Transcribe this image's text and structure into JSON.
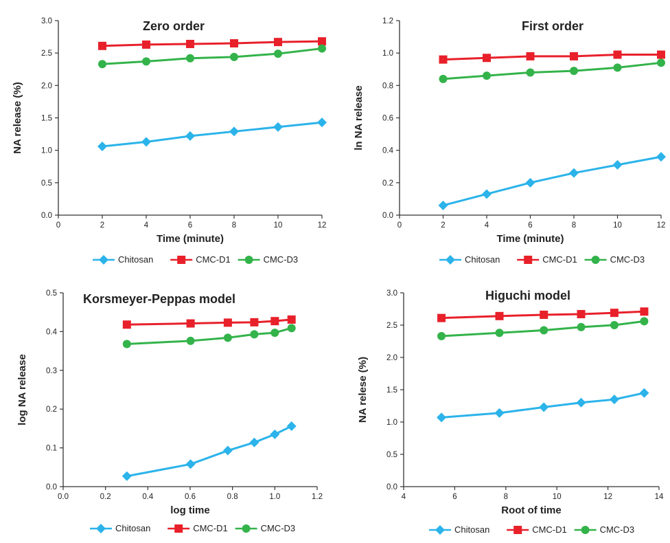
{
  "chart_data": [
    {
      "type": "line",
      "title": "Zero order",
      "xlabel": "Time (minute)",
      "ylabel": "NA release (%)",
      "xlim": [
        0,
        12
      ],
      "ylim": [
        0,
        3
      ],
      "xticks": [
        0,
        2,
        4,
        6,
        8,
        10,
        12
      ],
      "xtick_labels": [
        "0",
        "2",
        "4",
        "6",
        "8",
        "10",
        "12"
      ],
      "yticks": [
        0,
        0.5,
        1,
        1.5,
        2,
        2.5,
        3
      ],
      "ytick_labels": [
        "0.0",
        "0.5",
        "1.0",
        "1.5",
        "2.0",
        "2.5",
        "3.0"
      ],
      "legend_position": "bottom",
      "series": [
        {
          "name": "Chitosan",
          "color": "#2bb3ea",
          "marker": "diamond",
          "x": [
            2,
            4,
            6,
            8,
            10,
            12
          ],
          "y": [
            1.06,
            1.13,
            1.22,
            1.29,
            1.36,
            1.43
          ]
        },
        {
          "name": "CMC-D1",
          "color": "#e8202a",
          "marker": "square",
          "x": [
            2,
            4,
            6,
            8,
            10,
            12
          ],
          "y": [
            2.61,
            2.63,
            2.64,
            2.65,
            2.67,
            2.68
          ]
        },
        {
          "name": "CMC-D3",
          "color": "#33b34a",
          "marker": "circle",
          "x": [
            2,
            4,
            6,
            8,
            10,
            12
          ],
          "y": [
            2.33,
            2.37,
            2.42,
            2.44,
            2.49,
            2.57
          ]
        }
      ]
    },
    {
      "type": "line",
      "title": "First order",
      "xlabel": "Time (minute)",
      "ylabel": "ln NA release",
      "xlim": [
        0,
        12
      ],
      "ylim": [
        0,
        1.2
      ],
      "xticks": [
        0,
        2,
        4,
        6,
        8,
        10,
        12
      ],
      "xtick_labels": [
        "0",
        "2",
        "4",
        "6",
        "8",
        "10",
        "12"
      ],
      "yticks": [
        0,
        0.2,
        0.4,
        0.6,
        0.8,
        1,
        1.2
      ],
      "ytick_labels": [
        "0.0",
        "0.2",
        "0.4",
        "0.6",
        "0.8",
        "1.0",
        "1.2"
      ],
      "legend_position": "bottom",
      "series": [
        {
          "name": "Chitosan",
          "color": "#2bb3ea",
          "marker": "diamond",
          "x": [
            2,
            4,
            6,
            8,
            10,
            12
          ],
          "y": [
            0.06,
            0.13,
            0.2,
            0.26,
            0.31,
            0.36
          ]
        },
        {
          "name": "CMC-D1",
          "color": "#e8202a",
          "marker": "square",
          "x": [
            2,
            4,
            6,
            8,
            10,
            12
          ],
          "y": [
            0.96,
            0.97,
            0.98,
            0.98,
            0.99,
            0.99
          ]
        },
        {
          "name": "CMC-D3",
          "color": "#33b34a",
          "marker": "circle",
          "x": [
            2,
            4,
            6,
            8,
            10,
            12
          ],
          "y": [
            0.84,
            0.86,
            0.88,
            0.89,
            0.91,
            0.94
          ]
        }
      ]
    },
    {
      "type": "line",
      "title": "Korsmeyer-Peppas model",
      "xlabel": "log time",
      "ylabel": "log NA release",
      "xlim": [
        0,
        1.2
      ],
      "ylim": [
        0,
        0.5
      ],
      "xticks": [
        0,
        0.2,
        0.4,
        0.6,
        0.8,
        1,
        1.2
      ],
      "xtick_labels": [
        "0.0",
        "0.2",
        "0.4",
        "0.6",
        "0.8",
        "1.0",
        "1.2"
      ],
      "yticks": [
        0,
        0.1,
        0.2,
        0.3,
        0.4,
        0.5
      ],
      "ytick_labels": [
        "0.0",
        "0.1",
        "0.2",
        "0.3",
        "0.4",
        "0.5"
      ],
      "legend_position": "bottom",
      "series": [
        {
          "name": "Chitosan",
          "color": "#2bb3ea",
          "marker": "diamond",
          "x": [
            0.301,
            0.602,
            0.778,
            0.903,
            1.0,
            1.079
          ],
          "y": [
            0.027,
            0.058,
            0.093,
            0.114,
            0.135,
            0.156
          ]
        },
        {
          "name": "CMC-D1",
          "color": "#e8202a",
          "marker": "square",
          "x": [
            0.301,
            0.602,
            0.778,
            0.903,
            1.0,
            1.079
          ],
          "y": [
            0.418,
            0.421,
            0.423,
            0.424,
            0.427,
            0.431
          ]
        },
        {
          "name": "CMC-D3",
          "color": "#33b34a",
          "marker": "circle",
          "x": [
            0.301,
            0.602,
            0.778,
            0.903,
            1.0,
            1.079
          ],
          "y": [
            0.368,
            0.376,
            0.384,
            0.393,
            0.397,
            0.409
          ]
        }
      ]
    },
    {
      "type": "line",
      "title": "Higuchi model",
      "xlabel": "Root of time",
      "ylabel": "NA relese (%)",
      "xlim": [
        4,
        14
      ],
      "ylim": [
        0,
        3
      ],
      "xticks": [
        4,
        6,
        8,
        10,
        12,
        14
      ],
      "xtick_labels": [
        "4",
        "6",
        "8",
        "10",
        "12",
        "14"
      ],
      "yticks": [
        0,
        0.5,
        1,
        1.5,
        2,
        2.5,
        3
      ],
      "ytick_labels": [
        "0.0",
        "0.5",
        "1.0",
        "1.5",
        "2.0",
        "2.5",
        "3.0"
      ],
      "legend_position": "bottom",
      "series": [
        {
          "name": "Chitosan",
          "color": "#2bb3ea",
          "marker": "diamond",
          "x": [
            5.48,
            7.75,
            9.49,
            10.95,
            12.25,
            13.42
          ],
          "y": [
            1.07,
            1.14,
            1.23,
            1.3,
            1.35,
            1.45
          ]
        },
        {
          "name": "CMC-D1",
          "color": "#e8202a",
          "marker": "square",
          "x": [
            5.48,
            7.75,
            9.49,
            10.95,
            12.25,
            13.42
          ],
          "y": [
            2.61,
            2.64,
            2.66,
            2.67,
            2.69,
            2.71
          ]
        },
        {
          "name": "CMC-D3",
          "color": "#33b34a",
          "marker": "circle",
          "x": [
            5.48,
            7.75,
            9.49,
            10.95,
            12.25,
            13.42
          ],
          "y": [
            2.33,
            2.38,
            2.42,
            2.47,
            2.5,
            2.56
          ]
        }
      ]
    }
  ]
}
